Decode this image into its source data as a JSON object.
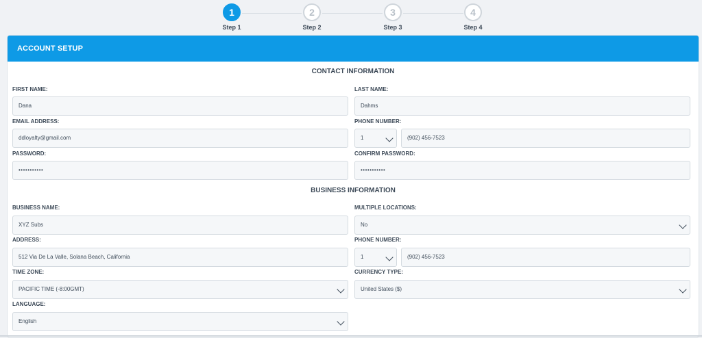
{
  "stepper": {
    "steps": [
      {
        "number": "1",
        "label": "Step 1"
      },
      {
        "number": "2",
        "label": "Step 2"
      },
      {
        "number": "3",
        "label": "Step 3"
      },
      {
        "number": "4",
        "label": "Step 4"
      }
    ],
    "active_step": 1
  },
  "colors": {
    "accent": "#0e9ae6",
    "field_bg": "#f5f7f9",
    "text": "#3d4a58"
  },
  "header": {
    "title": "ACCOUNT SETUP"
  },
  "contact": {
    "title": "CONTACT INFORMATION",
    "first_name_label": "FIRST NAME:",
    "first_name": "Dana",
    "last_name_label": "LAST NAME:",
    "last_name": "Dahms",
    "email_label": "EMAIL ADDRESS:",
    "email": "ddloyalty@gmail.com",
    "phone_label": "PHONE NUMBER:",
    "phone_code": "1",
    "phone": "(902) 456-7523",
    "password_label": "PASSWORD:",
    "password": "•••••••••••",
    "confirm_label": "CONFIRM PASSWORD:",
    "confirm": "•••••••••••"
  },
  "business": {
    "title": "BUSINESS INFORMATION",
    "name_label": "BUSINESS NAME:",
    "name": "XYZ Subs",
    "locations_label": "MULTIPLE LOCATIONS:",
    "locations": "No",
    "address_label": "ADDRESS:",
    "address": "512 Via De La Valle, Solana Beach, California",
    "phone_label": "PHONE NUMBER:",
    "phone_code": "1",
    "phone": "(902) 456-7523",
    "timezone_label": "TIME ZONE:",
    "timezone": "PACIFIC TIME (-8:00GMT)",
    "currency_label": "CURRENCY TYPE:",
    "currency": "United States ($)",
    "language_label": "LANGUAGE:",
    "language": "English"
  }
}
